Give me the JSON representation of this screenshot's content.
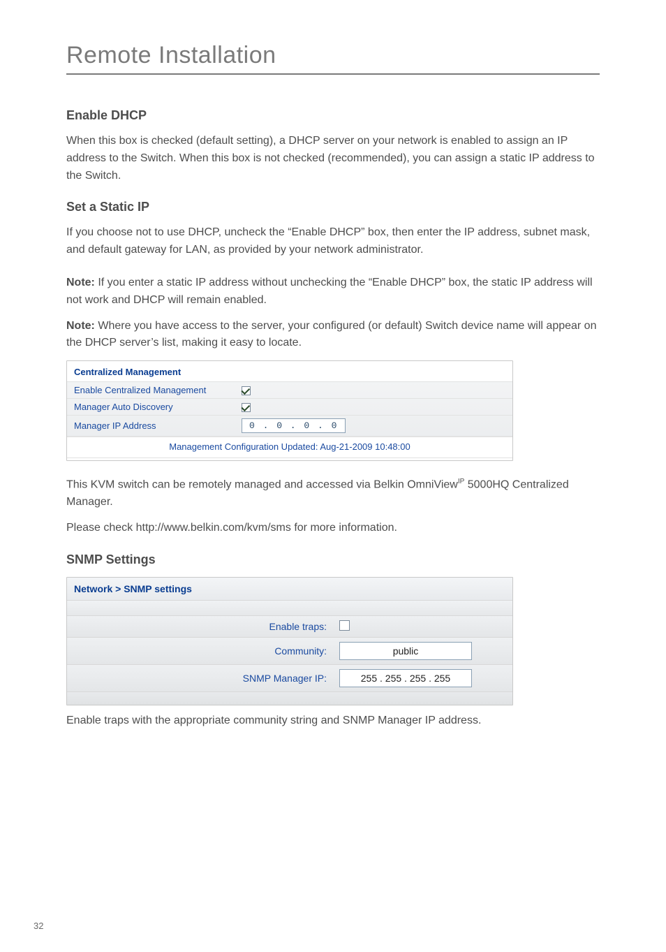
{
  "page": {
    "title": "Remote Installation",
    "number": "32",
    "title_color": "#7a7a7a",
    "rule_color": "#7a7a7a",
    "body_color": "#4d4d4d"
  },
  "enable_dhcp": {
    "heading": "Enable DHCP",
    "para": "When this box is checked (default setting), a DHCP server on your network is enabled to assign an IP address to the Switch. When this box is not checked (recommended), you can assign a static IP address to the Switch."
  },
  "static_ip": {
    "heading": "Set a Static IP",
    "para": "If you choose not to use DHCP, uncheck the “Enable DHCP” box, then enter the IP address, subnet mask, and default gateway for LAN, as provided by your network administrator.",
    "note1_label": "Note:",
    "note1": " If you enter a static IP address without unchecking the “Enable DHCP” box, the static IP address will not work and DHCP will remain enabled.",
    "note2_label": "Note:",
    "note2": " Where you have access to the server, your configured (or default) Switch device name will appear on the DHCP server’s list, making it easy to locate."
  },
  "cm_panel": {
    "title": "Centralized Management",
    "row1_label": "Enable Centralized Management",
    "row1_checked": true,
    "row2_label": "Manager Auto Discovery",
    "row2_checked": true,
    "row3_label": "Manager IP Address",
    "row3_value": "0 . 0 . 0 . 0",
    "footer": "Management Configuration Updated: Aug-21-2009 10:48:00",
    "label_color": "#1a4aa0",
    "title_color": "#0a3d91",
    "bg_gradient_top": "#f5f6f7",
    "bg_gradient_bottom": "#e9ebed",
    "border_color": "#c8c8c8"
  },
  "kvm": {
    "para1a": "This KVM switch can be remotely managed and accessed via Belkin OmniView",
    "para1_sup": "IP",
    "para1b": " 5000HQ Centralized Manager.",
    "para2": "Please check http://www.belkin.com/kvm/sms for more information."
  },
  "snmp": {
    "heading": "SNMP Settings",
    "panel_title": "Network > SNMP settings",
    "row1_label": "Enable traps:",
    "row1_checked": false,
    "row2_label": "Community:",
    "row2_value": "public",
    "row3_label": "SNMP Manager IP:",
    "row3_value": "255 . 255 . 255 . 255",
    "label_color": "#1a4aa0",
    "title_color": "#0a3d91",
    "bg_gradient_top": "#f3f5f7",
    "bg_gradient_bottom": "#e8eaed",
    "border_color": "#c8c8c8",
    "footer_para": "Enable traps with the appropriate community string and SNMP Manager IP address."
  }
}
